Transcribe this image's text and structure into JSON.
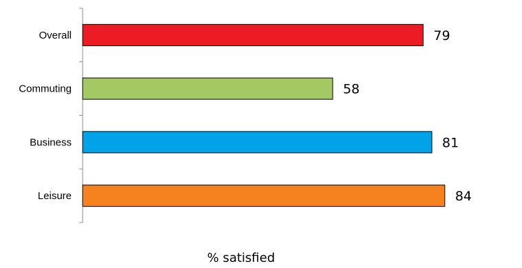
{
  "chart_data": {
    "type": "bar",
    "orientation": "horizontal",
    "categories": [
      "Overall",
      "Commuting",
      "Business",
      "Leisure"
    ],
    "values": [
      79,
      58,
      81,
      84
    ],
    "colors": [
      "#ed1c24",
      "#a3c864",
      "#00a2e8",
      "#f5821f"
    ],
    "title": "",
    "xlabel": "% satisfied",
    "ylabel": "",
    "xlim": [
      0,
      95
    ],
    "grid": false,
    "legend": "none",
    "data_labels": true
  }
}
